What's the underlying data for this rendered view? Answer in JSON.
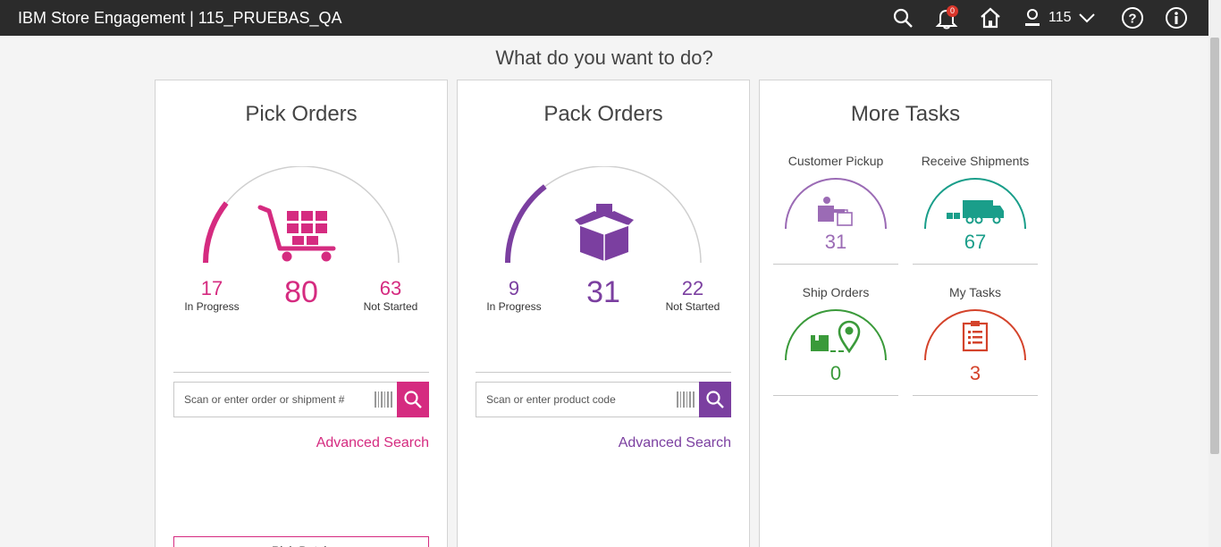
{
  "app": {
    "title": "IBM Store Engagement | 115_PRUEBAS_QA"
  },
  "header": {
    "notifications_count": "0",
    "user_store": "115",
    "icons": [
      "search-icon",
      "bell-icon",
      "home-icon",
      "user-icon",
      "chevron-down-icon",
      "help-icon",
      "info-icon"
    ]
  },
  "page": {
    "headline": "What do you want to do?"
  },
  "pick": {
    "title": "Pick Orders",
    "in_progress": "17",
    "in_progress_label": "In Progress",
    "total": "80",
    "not_started": "63",
    "not_started_label": "Not Started",
    "progress_fraction": 0.2125,
    "search_placeholder": "Scan or enter order or shipment #",
    "advanced_search": "Advanced Search",
    "bottom_button": "Pick Batch",
    "color": "#d52b80"
  },
  "pack": {
    "title": "Pack Orders",
    "in_progress": "9",
    "in_progress_label": "In Progress",
    "total": "31",
    "not_started": "22",
    "not_started_label": "Not Started",
    "progress_fraction": 0.29,
    "search_placeholder": "Scan or enter product code",
    "advanced_search": "Advanced Search",
    "color": "#7b3fa0"
  },
  "more": {
    "title": "More Tasks",
    "tasks": [
      {
        "label": "Customer Pickup",
        "count": "31",
        "color": "#9b6bb5"
      },
      {
        "label": "Receive Shipments",
        "count": "67",
        "color": "#1a9e8a"
      },
      {
        "label": "Ship Orders",
        "count": "0",
        "color": "#3a9a3a"
      },
      {
        "label": "My Tasks",
        "count": "3",
        "color": "#d4432b"
      }
    ]
  }
}
